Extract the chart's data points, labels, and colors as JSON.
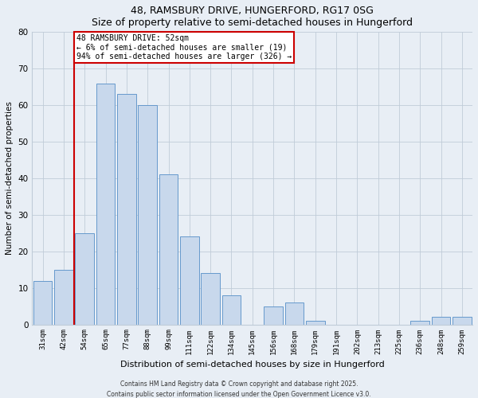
{
  "title": "48, RAMSBURY DRIVE, HUNGERFORD, RG17 0SG",
  "subtitle": "Size of property relative to semi-detached houses in Hungerford",
  "xlabel": "Distribution of semi-detached houses by size in Hungerford",
  "ylabel": "Number of semi-detached properties",
  "categories": [
    "31sqm",
    "42sqm",
    "54sqm",
    "65sqm",
    "77sqm",
    "88sqm",
    "99sqm",
    "111sqm",
    "122sqm",
    "134sqm",
    "145sqm",
    "156sqm",
    "168sqm",
    "179sqm",
    "191sqm",
    "202sqm",
    "213sqm",
    "225sqm",
    "236sqm",
    "248sqm",
    "259sqm"
  ],
  "values": [
    12,
    15,
    25,
    66,
    63,
    60,
    41,
    24,
    14,
    8,
    0,
    5,
    6,
    1,
    0,
    0,
    0,
    0,
    1,
    2,
    2
  ],
  "bar_color": "#c8d8ec",
  "bar_edge_color": "#6699cc",
  "property_line_color": "#cc0000",
  "annotation_title": "48 RAMSBURY DRIVE: 52sqm",
  "annotation_line1": "← 6% of semi-detached houses are smaller (19)",
  "annotation_line2": "94% of semi-detached houses are larger (326) →",
  "annotation_box_color": "#ffffff",
  "annotation_box_edge": "#cc0000",
  "ylim": [
    0,
    80
  ],
  "yticks": [
    0,
    10,
    20,
    30,
    40,
    50,
    60,
    70,
    80
  ],
  "footer1": "Contains HM Land Registry data © Crown copyright and database right 2025.",
  "footer2": "Contains public sector information licensed under the Open Government Licence v3.0.",
  "bg_color": "#e8eef5",
  "plot_bg_color": "#e8eef5",
  "grid_color": "#c0ccd8",
  "title_fontsize": 9,
  "subtitle_fontsize": 8.5
}
